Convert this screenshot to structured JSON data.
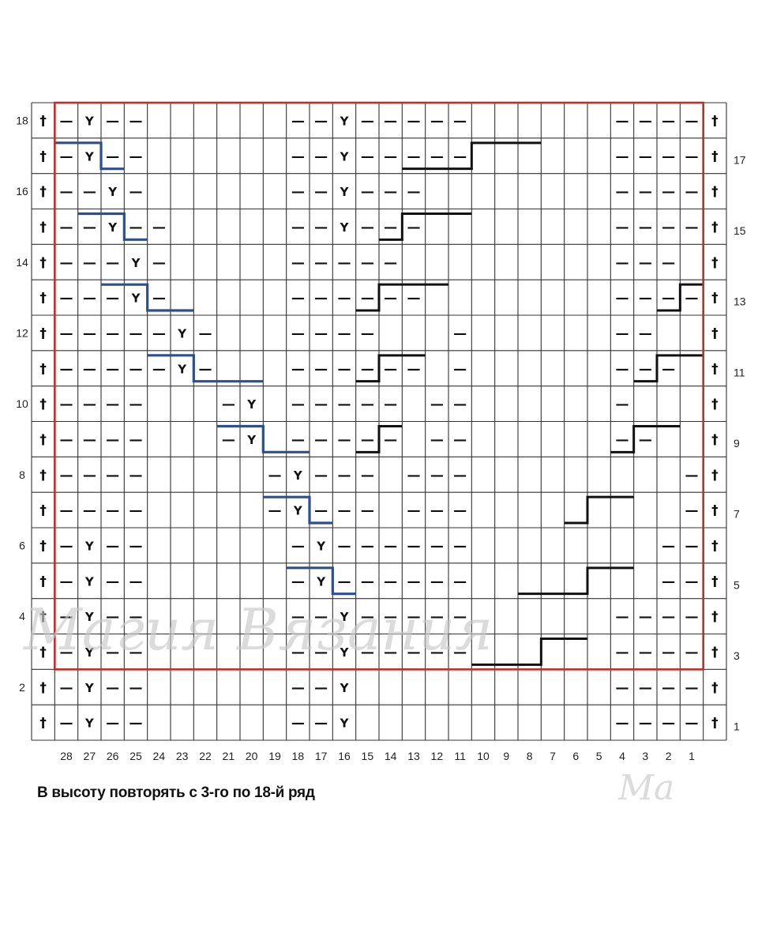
{
  "caption": "В высоту повторять с 3-го по 18-й ряд",
  "watermark": "Магия Вязания",
  "watermark_small": "Ма",
  "symbols": {
    "edge": "†",
    "purl": "—",
    "yarnover": "Y"
  },
  "colors": {
    "grid": "#333333",
    "frame": "#c0302b",
    "blue_step": "#2e4e8c",
    "black_step": "#111111"
  },
  "column_labels": [
    "28",
    "27",
    "26",
    "25",
    "24",
    "23",
    "22",
    "21",
    "20",
    "19",
    "18",
    "17",
    "16",
    "15",
    "14",
    "13",
    "12",
    "11",
    "10",
    "9",
    "8",
    "7",
    "6",
    "5",
    "4",
    "3",
    "2",
    "1"
  ],
  "left_row_labels": [
    "18",
    "16",
    "14",
    "12",
    "10",
    "8",
    "6",
    "4",
    "2"
  ],
  "right_row_labels": [
    "17",
    "15",
    "13",
    "11",
    "9",
    "7",
    "5",
    "3",
    "1"
  ],
  "chart_data": {
    "type": "table",
    "rows": 18,
    "columns": 28,
    "edge_columns": "both",
    "repeat_rows": [
      3,
      18
    ],
    "cells": {
      "18": {
        "Y": [
          27,
          16
        ],
        "purl": [
          28,
          26,
          25,
          18,
          17,
          15,
          14,
          13,
          12,
          11,
          4,
          3,
          2,
          1
        ]
      },
      "17": {
        "Y": [
          27,
          16
        ],
        "purl": [
          28,
          26,
          25,
          18,
          17,
          15,
          14,
          13,
          12,
          11,
          4,
          3,
          2,
          1
        ]
      },
      "16": {
        "Y": [
          26,
          16
        ],
        "purl": [
          28,
          27,
          25,
          18,
          17,
          15,
          14,
          13,
          4,
          3,
          2,
          1
        ]
      },
      "15": {
        "Y": [
          26,
          16
        ],
        "purl": [
          28,
          27,
          25,
          24,
          18,
          17,
          15,
          14,
          13,
          4,
          3,
          2,
          1
        ]
      },
      "14": {
        "Y": [
          25
        ],
        "purl": [
          28,
          27,
          26,
          24,
          18,
          17,
          16,
          15,
          14,
          4,
          3,
          2
        ]
      },
      "13": {
        "Y": [
          25
        ],
        "purl": [
          28,
          27,
          26,
          24,
          18,
          17,
          16,
          15,
          14,
          13,
          4,
          3,
          2,
          1
        ]
      },
      "12": {
        "Y": [
          23
        ],
        "purl": [
          28,
          27,
          26,
          25,
          24,
          22,
          18,
          17,
          16,
          15,
          11,
          4,
          3
        ]
      },
      "11": {
        "Y": [
          23
        ],
        "purl": [
          28,
          27,
          26,
          25,
          24,
          22,
          18,
          17,
          16,
          15,
          14,
          13,
          11,
          4,
          3,
          2
        ]
      },
      "10": {
        "Y": [
          20
        ],
        "purl": [
          28,
          27,
          26,
          25,
          21,
          18,
          17,
          16,
          15,
          14,
          12,
          11,
          4
        ]
      },
      "9": {
        "Y": [
          20
        ],
        "purl": [
          28,
          27,
          26,
          25,
          21,
          18,
          17,
          16,
          15,
          14,
          12,
          11,
          4,
          3
        ]
      },
      "8": {
        "Y": [
          18
        ],
        "purl": [
          28,
          27,
          26,
          25,
          19,
          17,
          16,
          15,
          13,
          12,
          11,
          1
        ]
      },
      "7": {
        "Y": [
          18
        ],
        "purl": [
          28,
          27,
          26,
          25,
          19,
          17,
          16,
          15,
          13,
          12,
          11,
          1
        ]
      },
      "6": {
        "Y": [
          27,
          17
        ],
        "purl": [
          28,
          26,
          25,
          18,
          16,
          15,
          14,
          13,
          12,
          11,
          2,
          1
        ]
      },
      "5": {
        "Y": [
          27,
          17
        ],
        "purl": [
          28,
          26,
          25,
          18,
          16,
          15,
          14,
          13,
          12,
          11,
          2,
          1
        ]
      },
      "4": {
        "Y": [
          27,
          16
        ],
        "purl": [
          28,
          26,
          25,
          18,
          17,
          15,
          14,
          13,
          12,
          11,
          4,
          3,
          2,
          1
        ]
      },
      "3": {
        "Y": [
          27,
          16
        ],
        "purl": [
          28,
          26,
          25,
          18,
          17,
          15,
          14,
          13,
          12,
          11,
          4,
          3,
          2,
          1
        ]
      },
      "2": {
        "Y": [
          27,
          16
        ],
        "purl": [
          28,
          26,
          25,
          18,
          17,
          4,
          3,
          2,
          1
        ]
      },
      "1": {
        "Y": [
          27,
          16
        ],
        "purl": [
          28,
          26,
          25,
          18,
          17,
          4,
          3,
          2,
          1
        ]
      }
    },
    "blue_steps": [
      {
        "row": 17,
        "start": 28,
        "end": 27,
        "drop_end": 26
      },
      {
        "row": 15,
        "start": 27,
        "end": 26,
        "drop_end": 25
      },
      {
        "row": 13,
        "start": 26,
        "end": 25,
        "drop_end": 23
      },
      {
        "row": 11,
        "start": 24,
        "end": 23,
        "drop_end": 20
      },
      {
        "row": 9,
        "start": 21,
        "end": 20,
        "drop_end": 18
      },
      {
        "row": 7,
        "start": 19,
        "end": 18,
        "drop_end": 17
      },
      {
        "row": 5,
        "start": 18,
        "end": 17,
        "drop_end": 16
      }
    ],
    "black_steps": [
      {
        "row": 17,
        "low_start": 13,
        "low_end": 11,
        "high_end": 8
      },
      {
        "row": 15,
        "low_start": 14,
        "low_end": 14,
        "high_end": 11
      },
      {
        "row": 13,
        "low_start": 15,
        "low_end": 15,
        "high_end": 12
      },
      {
        "row": 13,
        "low_start": 2,
        "low_end": 2,
        "high_end": 1
      },
      {
        "row": 11,
        "low_start": 15,
        "low_end": 15,
        "high_end": 13
      },
      {
        "row": 11,
        "low_start": 3,
        "low_end": 3,
        "high_end": 1
      },
      {
        "row": 9,
        "low_start": 15,
        "low_end": 15,
        "high_end": 14
      },
      {
        "row": 9,
        "low_start": 4,
        "low_end": 4,
        "high_end": 2
      },
      {
        "row": 7,
        "low_start": 6,
        "low_end": 6,
        "high_end": 4
      },
      {
        "row": 5,
        "low_start": 8,
        "low_end": 6,
        "high_end": 4
      },
      {
        "row": 3,
        "low_start": 10,
        "low_end": 8,
        "high_end": 6
      }
    ]
  }
}
